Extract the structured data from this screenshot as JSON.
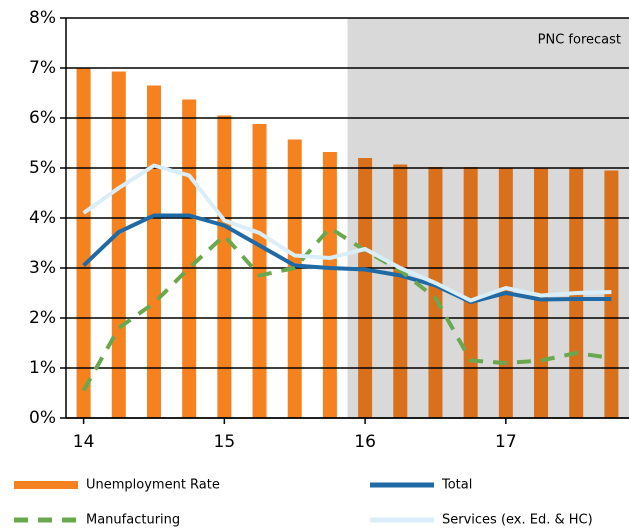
{
  "chart_data": {
    "type": "bar_line",
    "categories": [
      "14",
      null,
      null,
      null,
      "15",
      null,
      null,
      null,
      "16",
      null,
      null,
      null,
      "17",
      null,
      null,
      null
    ],
    "bar_series": {
      "name": "Unemployment Rate",
      "color": "#f5821f",
      "forecast_color": "#d9701c",
      "values": [
        7.0,
        6.93,
        6.65,
        6.37,
        6.05,
        5.88,
        5.57,
        5.32,
        5.2,
        5.07,
        5.02,
        5.02,
        5.0,
        5.0,
        5.0,
        4.95
      ]
    },
    "series": [
      {
        "name": "Total",
        "color": "#1f6aa5",
        "dash": false,
        "values": [
          3.05,
          3.72,
          4.05,
          4.05,
          3.85,
          3.45,
          3.05,
          3.0,
          2.97,
          2.85,
          2.65,
          2.32,
          2.5,
          2.37,
          2.38,
          2.38
        ]
      },
      {
        "name": "Manufacturing",
        "color": "#6aa84f",
        "dash": true,
        "values": [
          0.55,
          1.8,
          2.3,
          3.0,
          3.65,
          2.85,
          3.0,
          3.8,
          3.35,
          2.95,
          2.4,
          1.15,
          1.1,
          1.15,
          1.3,
          1.2
        ]
      },
      {
        "name": "Services (ex. Ed. & HC)",
        "color": "#d9eef9",
        "dash": false,
        "values": [
          4.1,
          4.6,
          5.05,
          4.85,
          3.95,
          3.7,
          3.25,
          3.2,
          3.38,
          3.0,
          2.7,
          2.35,
          2.6,
          2.45,
          2.5,
          2.52
        ]
      }
    ],
    "shaded_region": {
      "label": "PNC forecast",
      "from": 8,
      "color": "#d9d9d9"
    },
    "ylim": [
      0,
      8
    ],
    "yticks": [
      {
        "value": 0,
        "label": "0%"
      },
      {
        "value": 1,
        "label": "1%"
      },
      {
        "value": 2,
        "label": "2%"
      },
      {
        "value": 3,
        "label": "3%"
      },
      {
        "value": 4,
        "label": "4%"
      },
      {
        "value": 5,
        "label": "5%"
      },
      {
        "value": 6,
        "label": "6%"
      },
      {
        "value": 7,
        "label": "7%"
      },
      {
        "value": 8,
        "label": "8%"
      }
    ],
    "grid": true
  }
}
